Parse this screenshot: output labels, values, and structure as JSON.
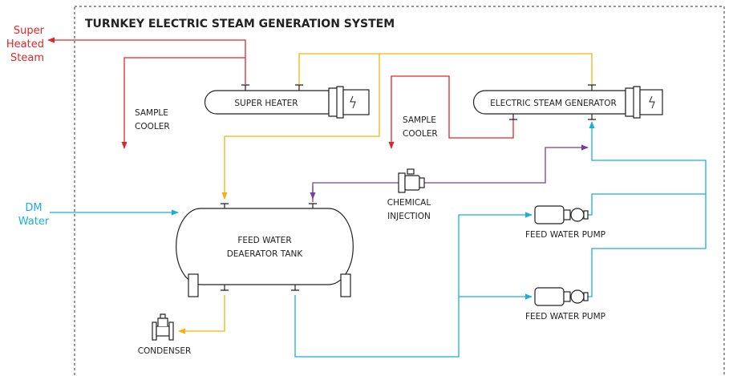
{
  "title": "TURNKEY ELECTRIC STEAM GENERATION SYSTEM",
  "outputs": {
    "superheated_steam": [
      "Super",
      "Heated",
      "Steam"
    ],
    "dm_water": [
      "DM",
      "Water"
    ]
  },
  "nodes": {
    "super_heater": "SUPER HEATER",
    "steam_generator": "ELECTRIC STEAM GENERATOR",
    "sample_cooler_1": [
      "SAMPLE",
      "COOLER"
    ],
    "sample_cooler_2": [
      "SAMPLE",
      "COOLER"
    ],
    "chemical_injection": [
      "CHEMICAL",
      "INJECTION"
    ],
    "deaerator_tank": [
      "FEED WATER",
      "DEAERATOR TANK"
    ],
    "feed_pump_1": "FEED WATER PUMP",
    "feed_pump_2": "FEED WATER PUMP",
    "condenser": "CONDENSER"
  }
}
